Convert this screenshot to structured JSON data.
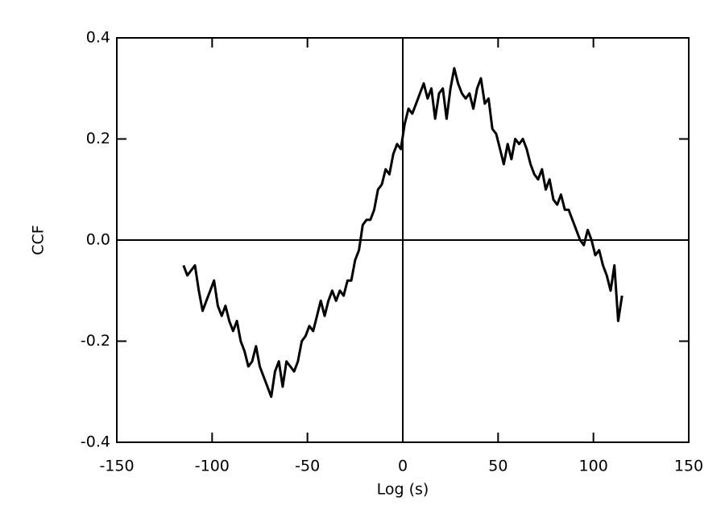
{
  "chart_data": {
    "type": "line",
    "xlabel": "Log (s)",
    "ylabel": "CCF",
    "xlim": [
      -150,
      150
    ],
    "ylim": [
      -0.4,
      0.4
    ],
    "xticks": [
      -150,
      -100,
      -50,
      0,
      50,
      100,
      150
    ],
    "yticks": [
      -0.4,
      -0.2,
      {
        "value": 0,
        "label": "0.0"
      },
      0.2,
      0.4
    ],
    "color": "#000000",
    "x": [
      -115,
      -113,
      -111,
      -109,
      -107,
      -105,
      -103,
      -101,
      -99,
      -97,
      -95,
      -93,
      -91,
      -89,
      -87,
      -85,
      -83,
      -81,
      -79,
      -77,
      -75,
      -73,
      -71,
      -69,
      -67,
      -65,
      -63,
      -61,
      -59,
      -57,
      -55,
      -53,
      -51,
      -49,
      -47,
      -45,
      -43,
      -41,
      -39,
      -37,
      -35,
      -33,
      -31,
      -29,
      -27,
      -25,
      -23,
      -21,
      -19,
      -17,
      -15,
      -13,
      -11,
      -9,
      -7,
      -5,
      -3,
      -1,
      1,
      3,
      5,
      7,
      9,
      11,
      13,
      15,
      17,
      19,
      21,
      23,
      25,
      27,
      29,
      31,
      33,
      35,
      37,
      39,
      41,
      43,
      45,
      47,
      49,
      51,
      53,
      55,
      57,
      59,
      61,
      63,
      65,
      67,
      69,
      71,
      73,
      75,
      77,
      79,
      81,
      83,
      85,
      87,
      89,
      91,
      93,
      95,
      97,
      99,
      101,
      103,
      105,
      107,
      109,
      111,
      113,
      115
    ],
    "values": [
      -0.05,
      -0.07,
      -0.06,
      -0.05,
      -0.1,
      -0.14,
      -0.12,
      -0.1,
      -0.08,
      -0.13,
      -0.15,
      -0.13,
      -0.16,
      -0.18,
      -0.16,
      -0.2,
      -0.22,
      -0.25,
      -0.24,
      -0.21,
      -0.25,
      -0.27,
      -0.29,
      -0.31,
      -0.26,
      -0.24,
      -0.29,
      -0.24,
      -0.25,
      -0.26,
      -0.24,
      -0.2,
      -0.19,
      -0.17,
      -0.18,
      -0.15,
      -0.12,
      -0.15,
      -0.12,
      -0.1,
      -0.12,
      -0.1,
      -0.11,
      -0.08,
      -0.08,
      -0.04,
      -0.02,
      0.03,
      0.04,
      0.04,
      0.06,
      0.1,
      0.11,
      0.14,
      0.13,
      0.17,
      0.19,
      0.18,
      0.23,
      0.26,
      0.25,
      0.27,
      0.29,
      0.31,
      0.28,
      0.3,
      0.24,
      0.29,
      0.3,
      0.24,
      0.3,
      0.34,
      0.31,
      0.29,
      0.28,
      0.29,
      0.26,
      0.3,
      0.32,
      0.27,
      0.28,
      0.22,
      0.21,
      0.18,
      0.15,
      0.19,
      0.16,
      0.2,
      0.19,
      0.2,
      0.18,
      0.15,
      0.13,
      0.12,
      0.14,
      0.1,
      0.12,
      0.08,
      0.07,
      0.09,
      0.06,
      0.06,
      0.04,
      0.02,
      0.0,
      -0.01,
      0.02,
      0.0,
      -0.03,
      -0.02,
      -0.05,
      -0.07,
      -0.1,
      -0.05,
      -0.16,
      -0.11
    ]
  }
}
